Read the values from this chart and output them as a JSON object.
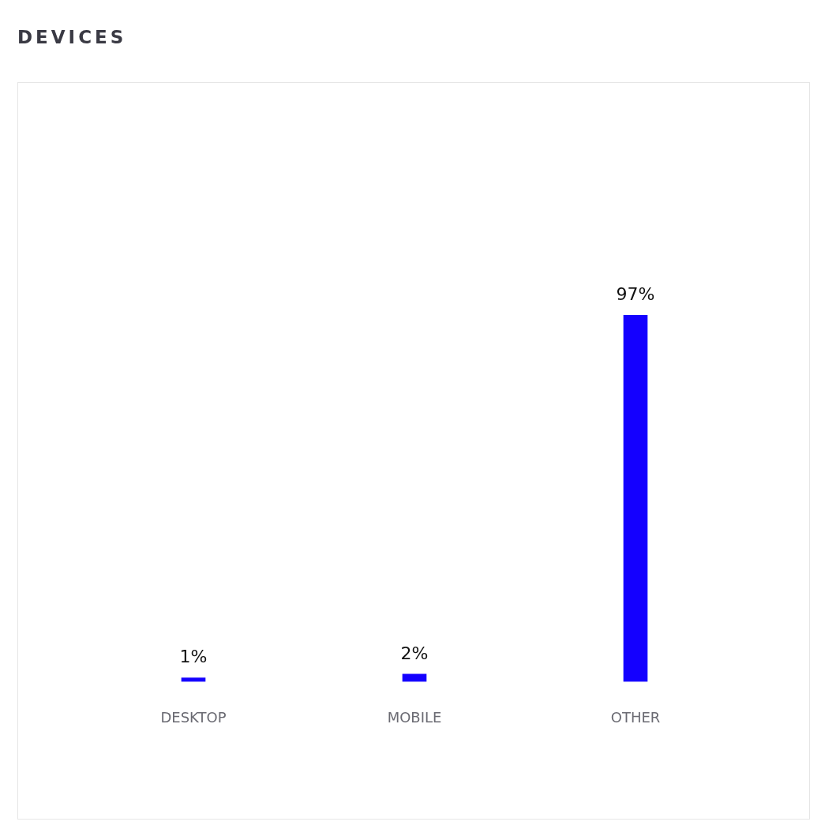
{
  "chart_data": {
    "type": "bar",
    "title": "DEVICES",
    "categories": [
      "DESKTOP",
      "MOBILE",
      "OTHER"
    ],
    "series": [
      {
        "color": "#1400ff",
        "values": [
          1,
          2,
          97
        ],
        "value_labels": [
          "1%",
          "2%",
          "97%"
        ]
      }
    ],
    "tick_labels": "x",
    "grid": false,
    "legend": false
  }
}
